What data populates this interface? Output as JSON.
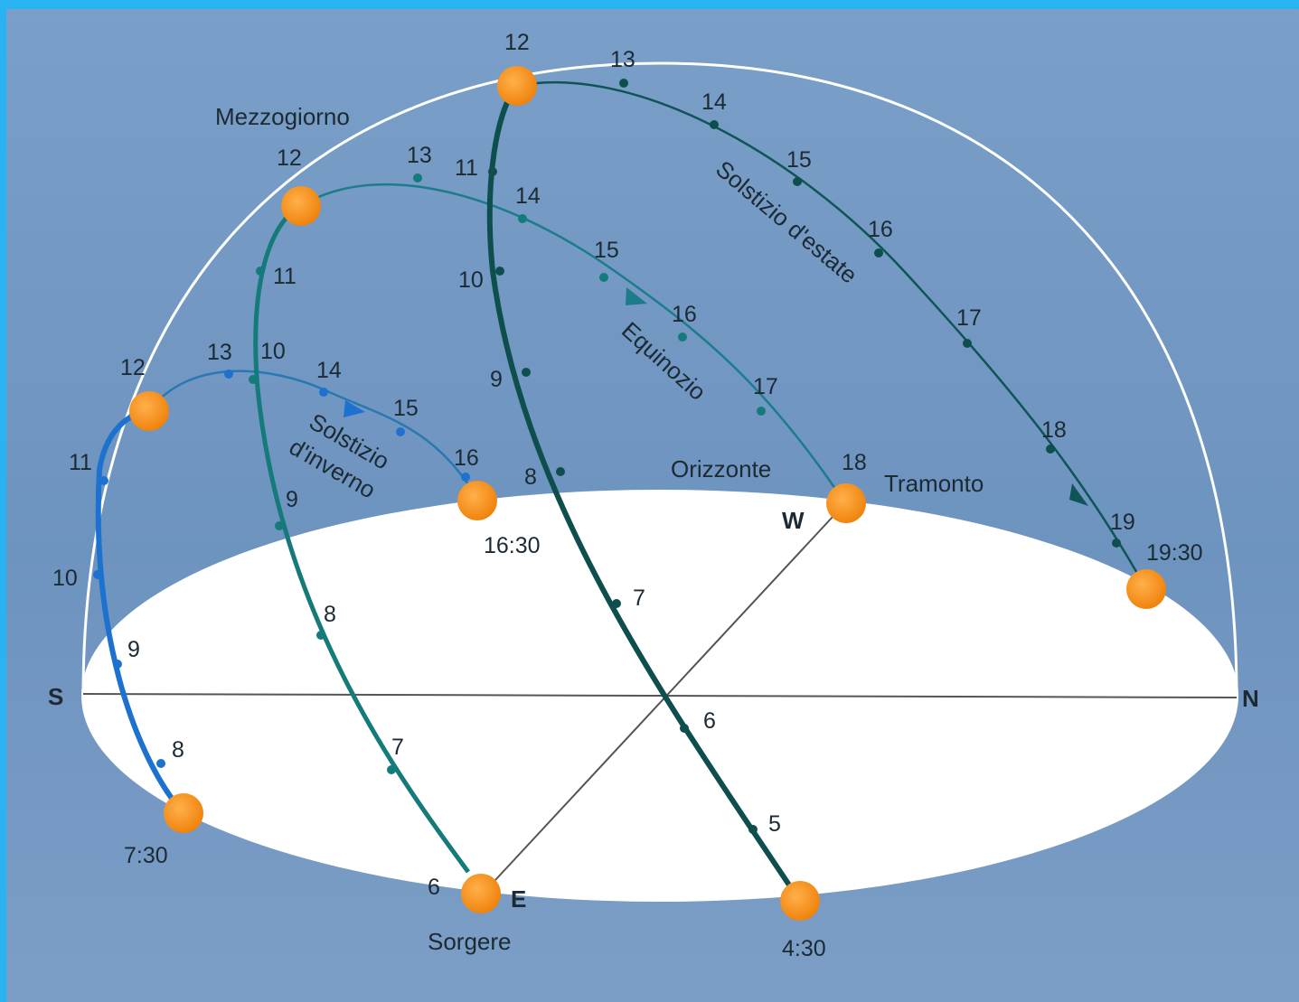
{
  "colors": {
    "background": "#7497c0",
    "top_band": "#29b3f2",
    "ground": "#ffffff",
    "sun": "#f58a12",
    "winter_path": "#1d72cf",
    "equinox_path": "#157a7a",
    "summer_path": "#0e4e4c"
  },
  "directions": {
    "south": "S",
    "north": "N",
    "east": "E",
    "west": "W"
  },
  "labels": {
    "noon": "Mezzogiorno",
    "horizon": "Orizzonte",
    "sunset": "Tramonto",
    "sunrise": "Sorgere",
    "winter_solstice_line1": "Solstizio",
    "winter_solstice_line2": "d'inverno",
    "equinox": "Equinozio",
    "summer_solstice": "Solstizio d'estate"
  },
  "winter": {
    "rise_time": "7:30",
    "set_time": "16:30",
    "hours": [
      "8",
      "9",
      "10",
      "11",
      "12",
      "13",
      "14",
      "15",
      "16"
    ]
  },
  "equinox": {
    "rise_time": "6",
    "hours": [
      "7",
      "8",
      "9",
      "10",
      "11",
      "12",
      "13",
      "14",
      "15",
      "16",
      "17",
      "18"
    ]
  },
  "summer": {
    "rise_time": "4:30",
    "set_time": "19:30",
    "hours": [
      "5",
      "6",
      "7",
      "8",
      "9",
      "10",
      "11",
      "12",
      "13",
      "14",
      "15",
      "16",
      "17",
      "18",
      "19"
    ]
  }
}
